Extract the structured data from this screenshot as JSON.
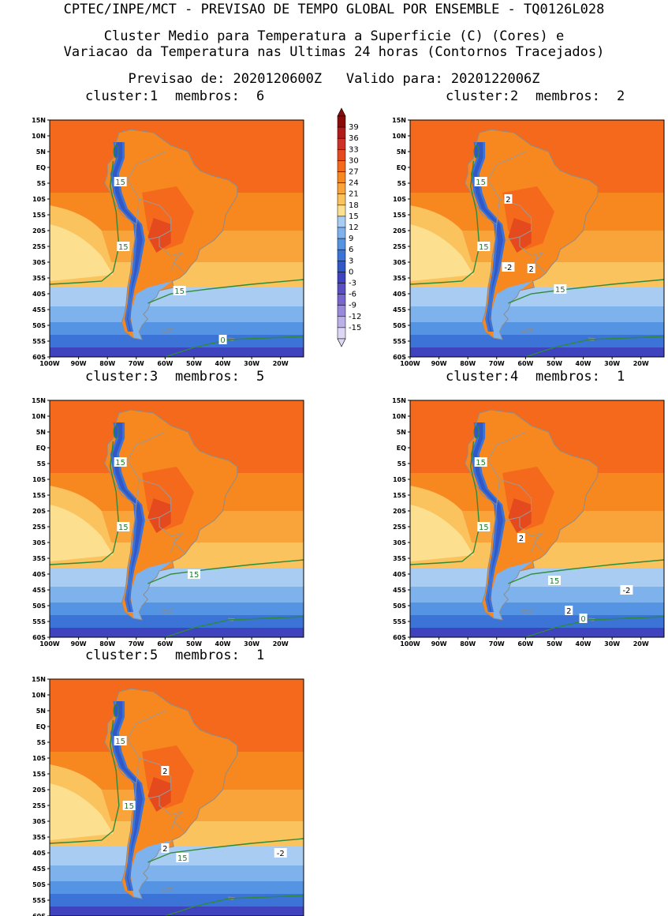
{
  "header": {
    "line1": "CPTEC/INPE/MCT - PREVISAO DE TEMPO GLOBAL POR ENSEMBLE - TQ0126L028",
    "line2": "Cluster Medio para Temperatura a Superficie (C) (Cores) e",
    "line3": "Variacao da Temperatura nas Ultimas 24 horas (Contornos Tracejados)",
    "forecast_label": "Previsao de: 2020120600Z",
    "valid_label": "Valido para: 2020122006Z"
  },
  "map_axes": {
    "lat_ticks": [
      "15N",
      "10N",
      "5N",
      "EQ",
      "5S",
      "10S",
      "15S",
      "20S",
      "25S",
      "30S",
      "35S",
      "40S",
      "45S",
      "50S",
      "55S",
      "60S"
    ],
    "lon_ticks": [
      "100W",
      "90W",
      "80W",
      "70W",
      "60W",
      "50W",
      "40W",
      "30W",
      "20W"
    ],
    "lat_range": [
      -60,
      15
    ],
    "lon_range": [
      -100,
      -12
    ]
  },
  "colorbar": {
    "levels": [
      "39",
      "36",
      "33",
      "30",
      "27",
      "24",
      "21",
      "18",
      "15",
      "12",
      "9",
      "6",
      "3",
      "0",
      "-3",
      "-6",
      "-9",
      "-12",
      "-15"
    ],
    "colors": [
      "#8b0a0a",
      "#b01c1c",
      "#cc3226",
      "#e44a1e",
      "#f4691c",
      "#f7871f",
      "#f9a33b",
      "#fbc35e",
      "#fde08f",
      "#a9cdf2",
      "#7eb2ec",
      "#5593e3",
      "#3b73d6",
      "#3158c6",
      "#3f43bd",
      "#5a4fc2",
      "#7866cf",
      "#9a88dc",
      "#bcb0e8",
      "#ddd6f4"
    ]
  },
  "panels": [
    {
      "cluster_label": "cluster:",
      "cluster_num": "1",
      "members_label": "membros:",
      "members_num": "6",
      "labels": [
        {
          "text": "15",
          "lon": -75.5,
          "lat": -4.5
        },
        {
          "text": "15",
          "lon": -74.5,
          "lat": -25
        },
        {
          "text": "15",
          "lon": -55,
          "lat": -39
        },
        {
          "text": "0",
          "lon": -40,
          "lat": -54.5
        }
      ]
    },
    {
      "cluster_label": "cluster:",
      "cluster_num": "2",
      "members_label": "membros:",
      "members_num": "2",
      "labels": [
        {
          "text": "15",
          "lon": -75.5,
          "lat": -4.5
        },
        {
          "text": "2",
          "lon": -66,
          "lat": -10
        },
        {
          "text": "15",
          "lon": -74.5,
          "lat": -25
        },
        {
          "text": "-2",
          "lon": -66,
          "lat": -31.5
        },
        {
          "text": "2",
          "lon": -58,
          "lat": -32
        },
        {
          "text": "15",
          "lon": -48,
          "lat": -38.5
        }
      ]
    },
    {
      "cluster_label": "cluster:",
      "cluster_num": "3",
      "members_label": "membros:",
      "members_num": "5",
      "labels": [
        {
          "text": "15",
          "lon": -75.5,
          "lat": -4.5
        },
        {
          "text": "15",
          "lon": -74.5,
          "lat": -25
        },
        {
          "text": "15",
          "lon": -50,
          "lat": -40
        }
      ]
    },
    {
      "cluster_label": "cluster:",
      "cluster_num": "4",
      "members_label": "membros:",
      "members_num": "1",
      "labels": [
        {
          "text": "15",
          "lon": -75.5,
          "lat": -4.5
        },
        {
          "text": "15",
          "lon": -74.5,
          "lat": -25
        },
        {
          "text": "2",
          "lon": -61.5,
          "lat": -28.5
        },
        {
          "text": "15",
          "lon": -50,
          "lat": -42
        },
        {
          "text": "-2",
          "lon": -25,
          "lat": -45
        },
        {
          "text": "2",
          "lon": -45,
          "lat": -51.5
        },
        {
          "text": "0",
          "lon": -40,
          "lat": -54
        }
      ]
    },
    {
      "cluster_label": "cluster:",
      "cluster_num": "5",
      "members_label": "membros:",
      "members_num": "1",
      "labels": [
        {
          "text": "15",
          "lon": -75.5,
          "lat": -4.5
        },
        {
          "text": "2",
          "lon": -60,
          "lat": -14
        },
        {
          "text": "15",
          "lon": -72.5,
          "lat": -25
        },
        {
          "text": "2",
          "lon": -60,
          "lat": -38.5
        },
        {
          "text": "15",
          "lon": -54,
          "lat": -41.5
        },
        {
          "text": "-2",
          "lon": -20,
          "lat": -40
        }
      ]
    }
  ]
}
